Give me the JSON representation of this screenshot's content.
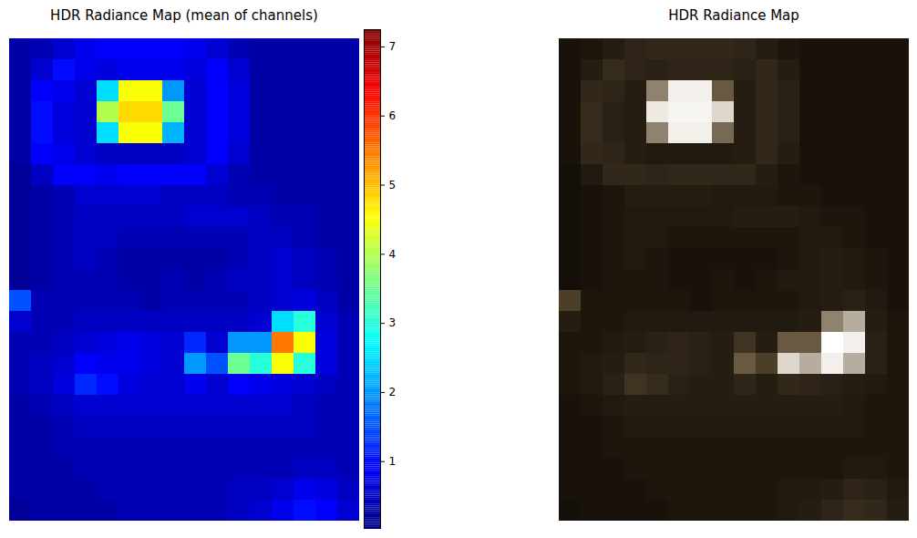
{
  "chart_data": [
    {
      "type": "heatmap",
      "title": "HDR Radiance Map (mean of channels)",
      "tick_labels": false,
      "cells": [
        [
          0.3,
          0.4,
          0.6,
          0.8,
          0.9,
          0.9,
          0.9,
          0.9,
          0.8,
          0.6,
          0.4,
          0.3,
          0.3,
          0.3,
          0.3,
          0.3
        ],
        [
          0.3,
          0.6,
          1.0,
          0.8,
          0.7,
          0.8,
          0.8,
          0.8,
          0.7,
          0.9,
          0.6,
          0.3,
          0.3,
          0.3,
          0.3,
          0.3
        ],
        [
          0.3,
          0.9,
          0.8,
          0.6,
          2.5,
          4.5,
          4.5,
          2.0,
          0.6,
          0.9,
          0.7,
          0.3,
          0.3,
          0.3,
          0.3,
          0.3
        ],
        [
          0.3,
          1.0,
          0.7,
          0.6,
          4.0,
          4.8,
          4.8,
          3.5,
          0.6,
          0.9,
          0.7,
          0.3,
          0.3,
          0.3,
          0.3,
          0.3
        ],
        [
          0.3,
          1.0,
          0.7,
          0.6,
          2.5,
          4.5,
          4.5,
          2.2,
          0.6,
          0.9,
          0.7,
          0.3,
          0.3,
          0.3,
          0.3,
          0.3
        ],
        [
          0.3,
          0.9,
          0.8,
          0.6,
          0.5,
          0.5,
          0.5,
          0.5,
          0.6,
          0.9,
          0.6,
          0.3,
          0.3,
          0.3,
          0.3,
          0.3
        ],
        [
          0.2,
          0.5,
          0.9,
          0.9,
          0.8,
          0.9,
          0.9,
          0.9,
          0.9,
          0.6,
          0.4,
          0.3,
          0.3,
          0.3,
          0.3,
          0.3
        ],
        [
          0.2,
          0.3,
          0.4,
          0.6,
          0.6,
          0.6,
          0.6,
          0.5,
          0.5,
          0.5,
          0.4,
          0.4,
          0.3,
          0.3,
          0.3,
          0.3
        ],
        [
          0.2,
          0.3,
          0.4,
          0.5,
          0.5,
          0.5,
          0.5,
          0.5,
          0.6,
          0.6,
          0.6,
          0.5,
          0.4,
          0.4,
          0.3,
          0.3
        ],
        [
          0.2,
          0.3,
          0.4,
          0.5,
          0.5,
          0.4,
          0.4,
          0.4,
          0.4,
          0.4,
          0.4,
          0.5,
          0.5,
          0.4,
          0.3,
          0.3
        ],
        [
          0.2,
          0.3,
          0.4,
          0.5,
          0.4,
          0.3,
          0.3,
          0.3,
          0.3,
          0.3,
          0.4,
          0.5,
          0.6,
          0.5,
          0.4,
          0.3
        ],
        [
          0.2,
          0.3,
          0.4,
          0.4,
          0.4,
          0.3,
          0.3,
          0.4,
          0.3,
          0.4,
          0.5,
          0.5,
          0.6,
          0.5,
          0.4,
          0.3
        ],
        [
          1.5,
          0.4,
          0.4,
          0.4,
          0.4,
          0.4,
          0.3,
          0.4,
          0.4,
          0.4,
          0.4,
          0.5,
          0.6,
          0.7,
          0.5,
          0.3
        ],
        [
          0.6,
          0.4,
          0.4,
          0.5,
          0.5,
          0.5,
          0.5,
          0.5,
          0.5,
          0.5,
          0.5,
          0.6,
          2.5,
          3.0,
          0.6,
          0.4
        ],
        [
          0.4,
          0.4,
          0.5,
          0.6,
          0.7,
          0.8,
          0.7,
          0.6,
          1.2,
          0.6,
          2.0,
          2.0,
          5.5,
          4.5,
          0.7,
          0.4
        ],
        [
          0.4,
          0.5,
          0.6,
          0.9,
          0.8,
          0.8,
          0.7,
          0.6,
          2.0,
          1.5,
          3.5,
          3.0,
          4.5,
          3.0,
          0.7,
          0.4
        ],
        [
          0.4,
          0.5,
          0.7,
          1.2,
          1.0,
          0.7,
          0.6,
          0.6,
          0.8,
          0.6,
          0.9,
          0.8,
          0.7,
          0.6,
          0.5,
          0.4
        ],
        [
          0.3,
          0.4,
          0.5,
          0.6,
          0.6,
          0.6,
          0.6,
          0.6,
          0.6,
          0.6,
          0.6,
          0.6,
          0.6,
          0.5,
          0.4,
          0.4
        ],
        [
          0.3,
          0.3,
          0.4,
          0.5,
          0.5,
          0.5,
          0.5,
          0.5,
          0.5,
          0.5,
          0.5,
          0.5,
          0.5,
          0.5,
          0.4,
          0.4
        ],
        [
          0.3,
          0.3,
          0.4,
          0.4,
          0.4,
          0.4,
          0.4,
          0.4,
          0.4,
          0.4,
          0.4,
          0.4,
          0.4,
          0.4,
          0.4,
          0.4
        ],
        [
          0.3,
          0.3,
          0.3,
          0.4,
          0.4,
          0.4,
          0.4,
          0.4,
          0.4,
          0.4,
          0.4,
          0.4,
          0.4,
          0.5,
          0.5,
          0.4
        ],
        [
          0.3,
          0.3,
          0.3,
          0.3,
          0.4,
          0.4,
          0.4,
          0.4,
          0.4,
          0.4,
          0.5,
          0.5,
          0.6,
          0.8,
          0.7,
          0.5
        ],
        [
          0.2,
          0.3,
          0.3,
          0.3,
          0.3,
          0.4,
          0.4,
          0.4,
          0.4,
          0.4,
          0.5,
          0.6,
          0.8,
          1.0,
          0.9,
          0.6
        ]
      ],
      "colorbar": {
        "range": [
          0.02,
          7.25
        ],
        "ticks": [
          1,
          2,
          3,
          4,
          5,
          6,
          7
        ]
      }
    },
    {
      "type": "image",
      "title": "HDR Radiance Map",
      "tick_labels": false
    }
  ]
}
